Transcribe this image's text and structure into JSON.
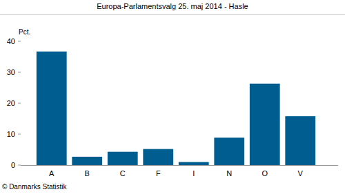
{
  "chart_data": {
    "type": "bar",
    "title": "Europa-Parlamentsvalg 25. maj 2014 - Hasle",
    "y_label": "Pct.",
    "source": "© Danmarks Statistik",
    "categories": [
      "A",
      "B",
      "C",
      "F",
      "I",
      "N",
      "O",
      "V"
    ],
    "values": [
      36.7,
      2.7,
      4.3,
      5.2,
      1.0,
      8.9,
      26.3,
      15.8
    ],
    "color": "#005d8f",
    "ylim": [
      0,
      40
    ],
    "yticks": [
      0,
      10,
      20,
      30,
      40
    ],
    "grid": false
  }
}
